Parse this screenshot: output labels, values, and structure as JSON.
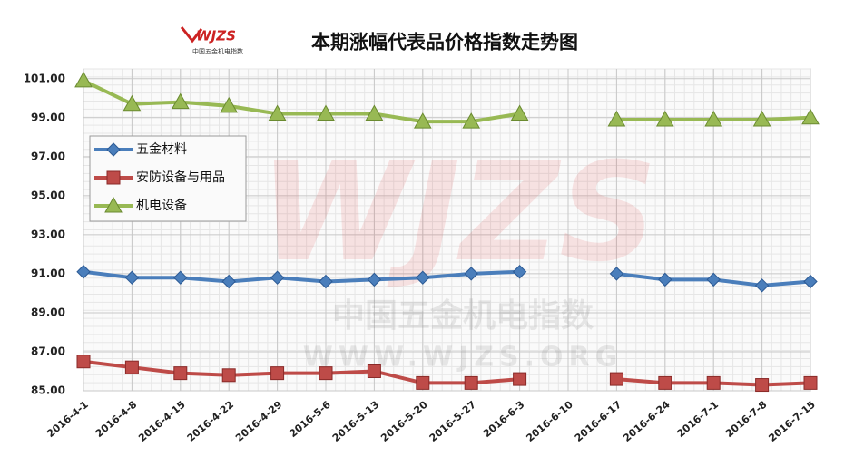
{
  "chart_data": {
    "type": "line",
    "title": "本期涨幅代表品价格指数走势图",
    "logo": {
      "text": "WJZS",
      "subtitle": "中国五金机电指数"
    },
    "watermark": {
      "logo": "WJZS",
      "name": "中国五金机电指数",
      "url": "WWW.WJZS.ORG"
    },
    "categories": [
      "2016-4-1",
      "2016-4-8",
      "2016-4-15",
      "2016-4-22",
      "2016-4-29",
      "2016-5-6",
      "2016-5-13",
      "2016-5-20",
      "2016-5-27",
      "2016-6-3",
      "2016-6-10",
      "2016-6-17",
      "2016-6-24",
      "2016-7-1",
      "2016-7-8",
      "2016-7-15"
    ],
    "series": [
      {
        "name": "五金材料",
        "color": "#4a7ebb",
        "marker": "diamond",
        "values": [
          91.1,
          90.8,
          90.8,
          90.6,
          90.8,
          90.6,
          90.7,
          90.8,
          91.0,
          91.1,
          null,
          91.0,
          90.7,
          90.7,
          90.4,
          90.6
        ]
      },
      {
        "name": "安防设备与用品",
        "color": "#be4b48",
        "marker": "square",
        "values": [
          86.5,
          86.2,
          85.9,
          85.8,
          85.9,
          85.9,
          86.0,
          85.4,
          85.4,
          85.6,
          null,
          85.6,
          85.4,
          85.4,
          85.3,
          85.4
        ]
      },
      {
        "name": "机电设备",
        "color": "#98b954",
        "marker": "triangle",
        "values": [
          100.9,
          99.7,
          99.8,
          99.6,
          99.2,
          99.2,
          99.2,
          98.8,
          98.8,
          99.2,
          null,
          98.9,
          98.9,
          98.9,
          98.9,
          99.0
        ]
      }
    ],
    "ylim": [
      85,
      101.5
    ],
    "yticks": [
      {
        "value": 85,
        "label": "85.00"
      },
      {
        "value": 87,
        "label": "87.00"
      },
      {
        "value": 89,
        "label": "89.00"
      },
      {
        "value": 91,
        "label": "91.00"
      },
      {
        "value": 93,
        "label": "93.00"
      },
      {
        "value": 95,
        "label": "95.00"
      },
      {
        "value": 97,
        "label": "97.00"
      },
      {
        "value": 99,
        "label": "99.00"
      },
      {
        "value": 101,
        "label": "101.00"
      }
    ],
    "grid": true,
    "legend": "top-left"
  }
}
